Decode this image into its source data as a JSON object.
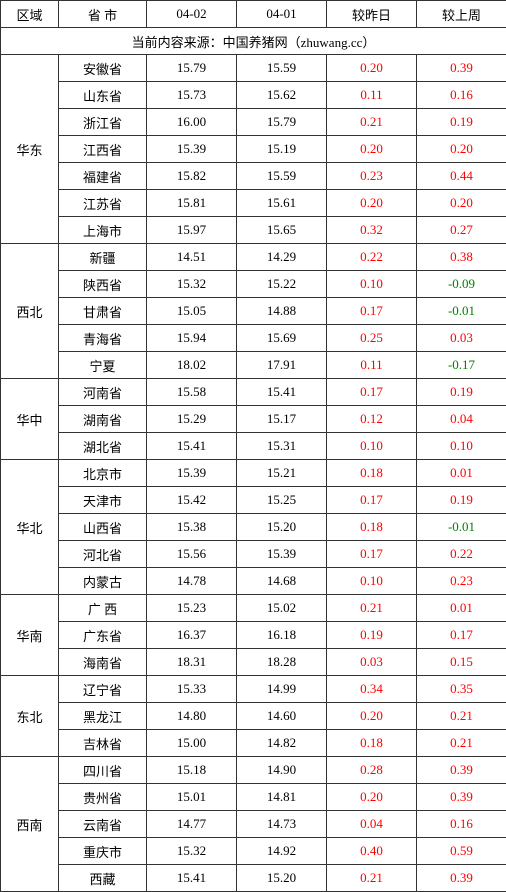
{
  "columns": [
    "区域",
    "省 市",
    "04-02",
    "04-01",
    "较昨日",
    "较上周"
  ],
  "source_text": "当前内容来源：中国养猪网（zhuwang.cc）",
  "colors": {
    "positive": "#ff0000",
    "negative": "#008000",
    "border": "#333333",
    "text": "#000000",
    "background": "#ffffff"
  },
  "regions": [
    {
      "name": "华东",
      "rows": [
        {
          "province": "安徽省",
          "d1": "15.79",
          "d2": "15.59",
          "yest": "0.20",
          "week": "0.39"
        },
        {
          "province": "山东省",
          "d1": "15.73",
          "d2": "15.62",
          "yest": "0.11",
          "week": "0.16"
        },
        {
          "province": "浙江省",
          "d1": "16.00",
          "d2": "15.79",
          "yest": "0.21",
          "week": "0.19"
        },
        {
          "province": "江西省",
          "d1": "15.39",
          "d2": "15.19",
          "yest": "0.20",
          "week": "0.20"
        },
        {
          "province": "福建省",
          "d1": "15.82",
          "d2": "15.59",
          "yest": "0.23",
          "week": "0.44"
        },
        {
          "province": "江苏省",
          "d1": "15.81",
          "d2": "15.61",
          "yest": "0.20",
          "week": "0.20"
        },
        {
          "province": "上海市",
          "d1": "15.97",
          "d2": "15.65",
          "yest": "0.32",
          "week": "0.27"
        }
      ]
    },
    {
      "name": "西北",
      "rows": [
        {
          "province": "新疆",
          "d1": "14.51",
          "d2": "14.29",
          "yest": "0.22",
          "week": "0.38"
        },
        {
          "province": "陕西省",
          "d1": "15.32",
          "d2": "15.22",
          "yest": "0.10",
          "week": "-0.09"
        },
        {
          "province": "甘肃省",
          "d1": "15.05",
          "d2": "14.88",
          "yest": "0.17",
          "week": "-0.01"
        },
        {
          "province": "青海省",
          "d1": "15.94",
          "d2": "15.69",
          "yest": "0.25",
          "week": "0.03"
        },
        {
          "province": "宁夏",
          "d1": "18.02",
          "d2": "17.91",
          "yest": "0.11",
          "week": "-0.17"
        }
      ]
    },
    {
      "name": "华中",
      "rows": [
        {
          "province": "河南省",
          "d1": "15.58",
          "d2": "15.41",
          "yest": "0.17",
          "week": "0.19"
        },
        {
          "province": "湖南省",
          "d1": "15.29",
          "d2": "15.17",
          "yest": "0.12",
          "week": "0.04"
        },
        {
          "province": "湖北省",
          "d1": "15.41",
          "d2": "15.31",
          "yest": "0.10",
          "week": "0.10"
        }
      ]
    },
    {
      "name": "华北",
      "rows": [
        {
          "province": "北京市",
          "d1": "15.39",
          "d2": "15.21",
          "yest": "0.18",
          "week": "0.01"
        },
        {
          "province": "天津市",
          "d1": "15.42",
          "d2": "15.25",
          "yest": "0.17",
          "week": "0.19"
        },
        {
          "province": "山西省",
          "d1": "15.38",
          "d2": "15.20",
          "yest": "0.18",
          "week": "-0.01"
        },
        {
          "province": "河北省",
          "d1": "15.56",
          "d2": "15.39",
          "yest": "0.17",
          "week": "0.22"
        },
        {
          "province": "内蒙古",
          "d1": "14.78",
          "d2": "14.68",
          "yest": "0.10",
          "week": "0.23"
        }
      ]
    },
    {
      "name": "华南",
      "rows": [
        {
          "province": "广 西",
          "d1": "15.23",
          "d2": "15.02",
          "yest": "0.21",
          "week": "0.01"
        },
        {
          "province": "广东省",
          "d1": "16.37",
          "d2": "16.18",
          "yest": "0.19",
          "week": "0.17"
        },
        {
          "province": "海南省",
          "d1": "18.31",
          "d2": "18.28",
          "yest": "0.03",
          "week": "0.15"
        }
      ]
    },
    {
      "name": "东北",
      "rows": [
        {
          "province": "辽宁省",
          "d1": "15.33",
          "d2": "14.99",
          "yest": "0.34",
          "week": "0.35"
        },
        {
          "province": "黑龙江",
          "d1": "14.80",
          "d2": "14.60",
          "yest": "0.20",
          "week": "0.21"
        },
        {
          "province": "吉林省",
          "d1": "15.00",
          "d2": "14.82",
          "yest": "0.18",
          "week": "0.21"
        }
      ]
    },
    {
      "name": "西南",
      "rows": [
        {
          "province": "四川省",
          "d1": "15.18",
          "d2": "14.90",
          "yest": "0.28",
          "week": "0.39"
        },
        {
          "province": "贵州省",
          "d1": "15.01",
          "d2": "14.81",
          "yest": "0.20",
          "week": "0.39"
        },
        {
          "province": "云南省",
          "d1": "14.77",
          "d2": "14.73",
          "yest": "0.04",
          "week": "0.16"
        },
        {
          "province": "重庆市",
          "d1": "15.32",
          "d2": "14.92",
          "yest": "0.40",
          "week": "0.59"
        },
        {
          "province": "西藏",
          "d1": "15.41",
          "d2": "15.20",
          "yest": "0.21",
          "week": "0.39"
        }
      ]
    }
  ]
}
